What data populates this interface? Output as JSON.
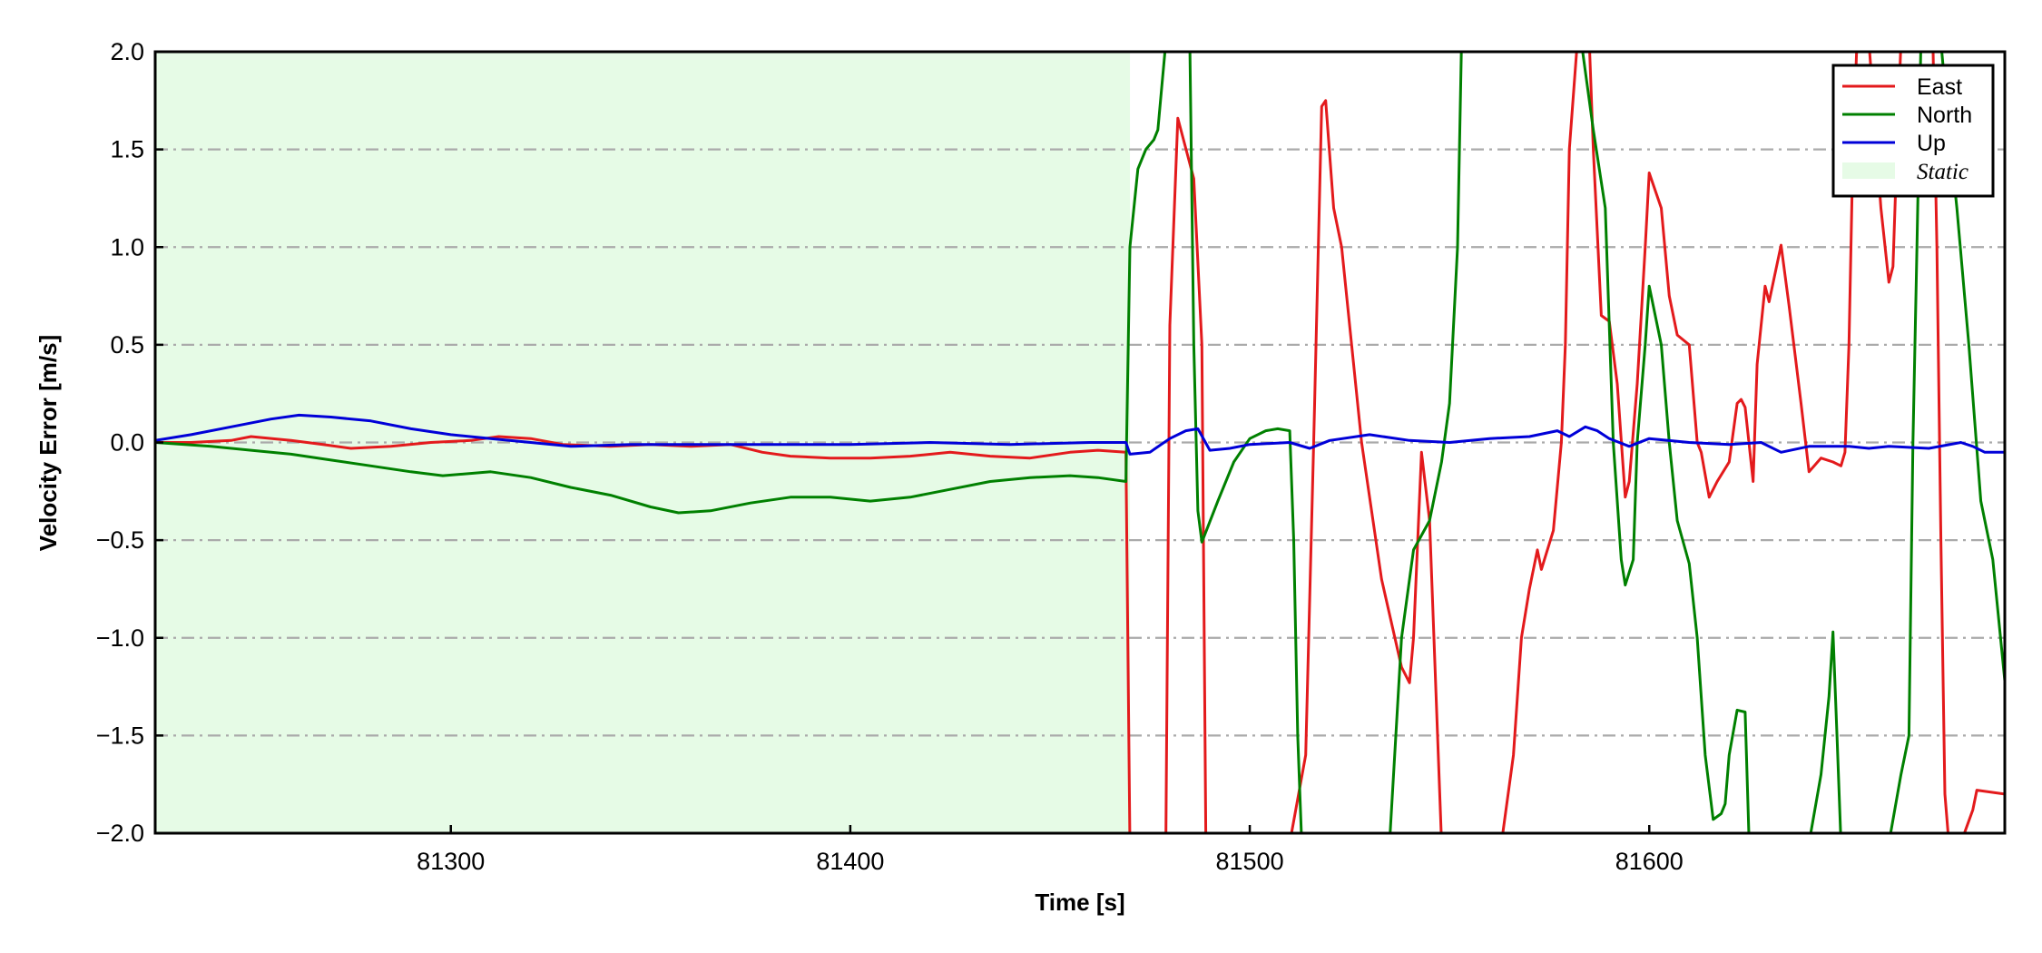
{
  "chart_data": {
    "type": "line",
    "xlabel": "Time [s]",
    "ylabel": "Velocity Error [m/s]",
    "xlim": [
      81226,
      81689
    ],
    "ylim": [
      -2.0,
      2.0
    ],
    "xticks": [
      81300,
      81400,
      81500,
      81600
    ],
    "xtick_labels": [
      "81300",
      "81400",
      "81500",
      "81600"
    ],
    "yticks": [
      -2.0,
      -1.5,
      -1.0,
      -0.5,
      0.0,
      0.5,
      1.0,
      1.5,
      2.0
    ],
    "ytick_labels": [
      "−2.0",
      "−1.5",
      "−1.0",
      "−0.5",
      "0.0",
      "0.5",
      "1.0",
      "1.5",
      "2.0"
    ],
    "grid": "horizontal dash-dot",
    "legend_position": "top-right",
    "static_region": {
      "label": "Static",
      "x_start": 81226,
      "x_end": 81470,
      "color": "#e6fbe6"
    },
    "series": [
      {
        "name": "East",
        "color": "#e31a1c",
        "points": [
          [
            81226,
            0.0
          ],
          [
            81235,
            0.0
          ],
          [
            81245,
            0.01
          ],
          [
            81250,
            0.03
          ],
          [
            81260,
            0.01
          ],
          [
            81268,
            -0.01
          ],
          [
            81275,
            -0.03
          ],
          [
            81285,
            -0.02
          ],
          [
            81295,
            0.0
          ],
          [
            81305,
            0.01
          ],
          [
            81312,
            0.03
          ],
          [
            81320,
            0.02
          ],
          [
            81328,
            -0.01
          ],
          [
            81340,
            -0.02
          ],
          [
            81350,
            -0.01
          ],
          [
            81360,
            -0.02
          ],
          [
            81370,
            -0.01
          ],
          [
            81378,
            -0.05
          ],
          [
            81385,
            -0.07
          ],
          [
            81395,
            -0.08
          ],
          [
            81405,
            -0.08
          ],
          [
            81415,
            -0.07
          ],
          [
            81425,
            -0.05
          ],
          [
            81435,
            -0.07
          ],
          [
            81445,
            -0.08
          ],
          [
            81455,
            -0.05
          ],
          [
            81462,
            -0.04
          ],
          [
            81469,
            -0.05
          ],
          [
            81470,
            -2.05
          ],
          [
            81479,
            -2.05
          ],
          [
            81480,
            0.6
          ],
          [
            81482,
            1.66
          ],
          [
            81486,
            1.35
          ],
          [
            81488,
            0.5
          ],
          [
            81489,
            -2.05
          ],
          [
            81510,
            -2.05
          ],
          [
            81514,
            -1.6
          ],
          [
            81516,
            0.0
          ],
          [
            81518,
            1.72
          ],
          [
            81519,
            1.75
          ],
          [
            81521,
            1.2
          ],
          [
            81523,
            1.0
          ],
          [
            81528,
            0.0
          ],
          [
            81533,
            -0.7
          ],
          [
            81538,
            -1.15
          ],
          [
            81540,
            -1.23
          ],
          [
            81541,
            -1.0
          ],
          [
            81543,
            -0.05
          ],
          [
            81545,
            -0.4
          ],
          [
            81548,
            -2.05
          ],
          [
            81563,
            -2.05
          ],
          [
            81566,
            -1.6
          ],
          [
            81568,
            -1.0
          ],
          [
            81570,
            -0.75
          ],
          [
            81572,
            -0.55
          ],
          [
            81573,
            -0.65
          ],
          [
            81576,
            -0.45
          ],
          [
            81578,
            0.0
          ],
          [
            81579,
            0.5
          ],
          [
            81580,
            1.5
          ],
          [
            81582,
            2.05
          ],
          [
            81585,
            2.05
          ],
          [
            81586,
            1.5
          ],
          [
            81588,
            0.65
          ],
          [
            81590,
            0.62
          ],
          [
            81592,
            0.3
          ],
          [
            81594,
            -0.28
          ],
          [
            81595,
            -0.2
          ],
          [
            81597,
            0.3
          ],
          [
            81599,
            1.0
          ],
          [
            81600,
            1.38
          ],
          [
            81603,
            1.2
          ],
          [
            81605,
            0.75
          ],
          [
            81607,
            0.55
          ],
          [
            81610,
            0.5
          ],
          [
            81612,
            0.0
          ],
          [
            81613,
            -0.05
          ],
          [
            81615,
            -0.28
          ],
          [
            81617,
            -0.2
          ],
          [
            81620,
            -0.1
          ],
          [
            81622,
            0.2
          ],
          [
            81623,
            0.22
          ],
          [
            81624,
            0.18
          ],
          [
            81626,
            -0.2
          ],
          [
            81627,
            0.4
          ],
          [
            81629,
            0.8
          ],
          [
            81630,
            0.72
          ],
          [
            81633,
            1.01
          ],
          [
            81635,
            0.7
          ],
          [
            81638,
            0.2
          ],
          [
            81640,
            -0.15
          ],
          [
            81643,
            -0.08
          ],
          [
            81646,
            -0.1
          ],
          [
            81648,
            -0.12
          ],
          [
            81649,
            -0.05
          ],
          [
            81650,
            0.5
          ],
          [
            81651,
            1.5
          ],
          [
            81652,
            2.05
          ],
          [
            81655,
            2.05
          ],
          [
            81658,
            1.2
          ],
          [
            81660,
            0.82
          ],
          [
            81661,
            0.9
          ],
          [
            81662,
            1.5
          ],
          [
            81663,
            2.05
          ],
          [
            81671,
            2.05
          ],
          [
            81672,
            1.0
          ],
          [
            81673,
            -0.5
          ],
          [
            81674,
            -1.8
          ],
          [
            81675,
            -2.05
          ],
          [
            81678,
            -2.05
          ],
          [
            81681,
            -1.88
          ],
          [
            81682,
            -1.78
          ],
          [
            81689,
            -1.8
          ]
        ]
      },
      {
        "name": "North",
        "color": "#008000",
        "points": [
          [
            81226,
            0.0
          ],
          [
            81240,
            -0.02
          ],
          [
            81250,
            -0.04
          ],
          [
            81260,
            -0.06
          ],
          [
            81270,
            -0.09
          ],
          [
            81280,
            -0.12
          ],
          [
            81290,
            -0.15
          ],
          [
            81298,
            -0.17
          ],
          [
            81310,
            -0.15
          ],
          [
            81320,
            -0.18
          ],
          [
            81330,
            -0.23
          ],
          [
            81340,
            -0.27
          ],
          [
            81350,
            -0.33
          ],
          [
            81357,
            -0.36
          ],
          [
            81365,
            -0.35
          ],
          [
            81375,
            -0.31
          ],
          [
            81385,
            -0.28
          ],
          [
            81395,
            -0.28
          ],
          [
            81405,
            -0.3
          ],
          [
            81415,
            -0.28
          ],
          [
            81425,
            -0.24
          ],
          [
            81435,
            -0.2
          ],
          [
            81445,
            -0.18
          ],
          [
            81455,
            -0.17
          ],
          [
            81462,
            -0.18
          ],
          [
            81469,
            -0.2
          ],
          [
            81470,
            1.0
          ],
          [
            81472,
            1.4
          ],
          [
            81474,
            1.5
          ],
          [
            81476,
            1.55
          ],
          [
            81477,
            1.6
          ],
          [
            81479,
            2.05
          ],
          [
            81485,
            2.05
          ],
          [
            81486,
            0.5
          ],
          [
            81487,
            -0.35
          ],
          [
            81488,
            -0.51
          ],
          [
            81492,
            -0.3
          ],
          [
            81496,
            -0.1
          ],
          [
            81500,
            0.02
          ],
          [
            81504,
            0.06
          ],
          [
            81507,
            0.07
          ],
          [
            81510,
            0.06
          ],
          [
            81511,
            -0.5
          ],
          [
            81512,
            -1.5
          ],
          [
            81513,
            -2.05
          ],
          [
            81535,
            -2.05
          ],
          [
            81538,
            -1.0
          ],
          [
            81541,
            -0.55
          ],
          [
            81545,
            -0.4
          ],
          [
            81548,
            -0.1
          ],
          [
            81550,
            0.2
          ],
          [
            81552,
            1.0
          ],
          [
            81553,
            2.05
          ],
          [
            81583,
            2.05
          ],
          [
            81586,
            1.6
          ],
          [
            81589,
            1.2
          ],
          [
            81591,
            0.0
          ],
          [
            81593,
            -0.6
          ],
          [
            81594,
            -0.73
          ],
          [
            81596,
            -0.6
          ],
          [
            81597,
            0.0
          ],
          [
            81599,
            0.5
          ],
          [
            81600,
            0.8
          ],
          [
            81603,
            0.5
          ],
          [
            81605,
            0.0
          ],
          [
            81607,
            -0.4
          ],
          [
            81610,
            -0.62
          ],
          [
            81612,
            -1.0
          ],
          [
            81614,
            -1.6
          ],
          [
            81616,
            -1.93
          ],
          [
            81618,
            -1.9
          ],
          [
            81619,
            -1.85
          ],
          [
            81620,
            -1.6
          ],
          [
            81622,
            -1.37
          ],
          [
            81624,
            -1.38
          ],
          [
            81625,
            -2.05
          ],
          [
            81640,
            -2.05
          ],
          [
            81643,
            -1.7
          ],
          [
            81645,
            -1.3
          ],
          [
            81646,
            -0.97
          ],
          [
            81647,
            -1.5
          ],
          [
            81648,
            -2.05
          ],
          [
            81660,
            -2.05
          ],
          [
            81663,
            -1.7
          ],
          [
            81665,
            -1.5
          ],
          [
            81666,
            0.0
          ],
          [
            81667,
            1.0
          ],
          [
            81668,
            2.05
          ],
          [
            81673,
            2.05
          ],
          [
            81675,
            1.6
          ],
          [
            81677,
            1.2
          ],
          [
            81680,
            0.5
          ],
          [
            81683,
            -0.3
          ],
          [
            81686,
            -0.6
          ],
          [
            81689,
            -1.22
          ]
        ]
      },
      {
        "name": "Up",
        "color": "#0000d8",
        "points": [
          [
            81226,
            0.01
          ],
          [
            81235,
            0.04
          ],
          [
            81245,
            0.08
          ],
          [
            81255,
            0.12
          ],
          [
            81262,
            0.14
          ],
          [
            81270,
            0.13
          ],
          [
            81280,
            0.11
          ],
          [
            81290,
            0.07
          ],
          [
            81300,
            0.04
          ],
          [
            81310,
            0.02
          ],
          [
            81320,
            0.0
          ],
          [
            81330,
            -0.02
          ],
          [
            81345,
            -0.01
          ],
          [
            81360,
            -0.01
          ],
          [
            81380,
            -0.01
          ],
          [
            81400,
            -0.01
          ],
          [
            81420,
            0.0
          ],
          [
            81440,
            -0.01
          ],
          [
            81460,
            0.0
          ],
          [
            81469,
            0.0
          ],
          [
            81470,
            -0.06
          ],
          [
            81475,
            -0.05
          ],
          [
            81480,
            0.02
          ],
          [
            81484,
            0.06
          ],
          [
            81487,
            0.07
          ],
          [
            81490,
            -0.04
          ],
          [
            81495,
            -0.03
          ],
          [
            81500,
            -0.01
          ],
          [
            81510,
            0.0
          ],
          [
            81515,
            -0.03
          ],
          [
            81520,
            0.01
          ],
          [
            81530,
            0.04
          ],
          [
            81540,
            0.01
          ],
          [
            81550,
            0.0
          ],
          [
            81560,
            0.02
          ],
          [
            81570,
            0.03
          ],
          [
            81577,
            0.06
          ],
          [
            81580,
            0.03
          ],
          [
            81584,
            0.08
          ],
          [
            81587,
            0.06
          ],
          [
            81590,
            0.02
          ],
          [
            81595,
            -0.02
          ],
          [
            81600,
            0.02
          ],
          [
            81610,
            0.0
          ],
          [
            81620,
            -0.01
          ],
          [
            81628,
            0.0
          ],
          [
            81633,
            -0.05
          ],
          [
            81640,
            -0.02
          ],
          [
            81650,
            -0.02
          ],
          [
            81655,
            -0.03
          ],
          [
            81660,
            -0.02
          ],
          [
            81670,
            -0.03
          ],
          [
            81678,
            0.0
          ],
          [
            81681,
            -0.02
          ],
          [
            81684,
            -0.05
          ],
          [
            81689,
            -0.05
          ]
        ]
      }
    ]
  }
}
